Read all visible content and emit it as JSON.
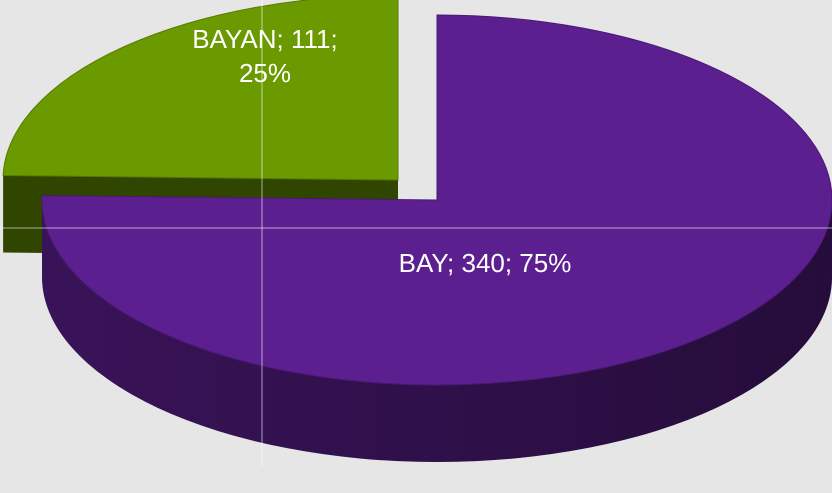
{
  "chart_data": {
    "type": "pie3d",
    "categories": [
      "BAY",
      "BAYAN"
    ],
    "values": [
      340,
      111
    ],
    "value_labels": [
      "BAY; 340; 75%",
      "BAYAN; 111; 25%"
    ],
    "colors": [
      "#5c1f90",
      "#6b9900"
    ],
    "explode": [
      false,
      true
    ]
  }
}
